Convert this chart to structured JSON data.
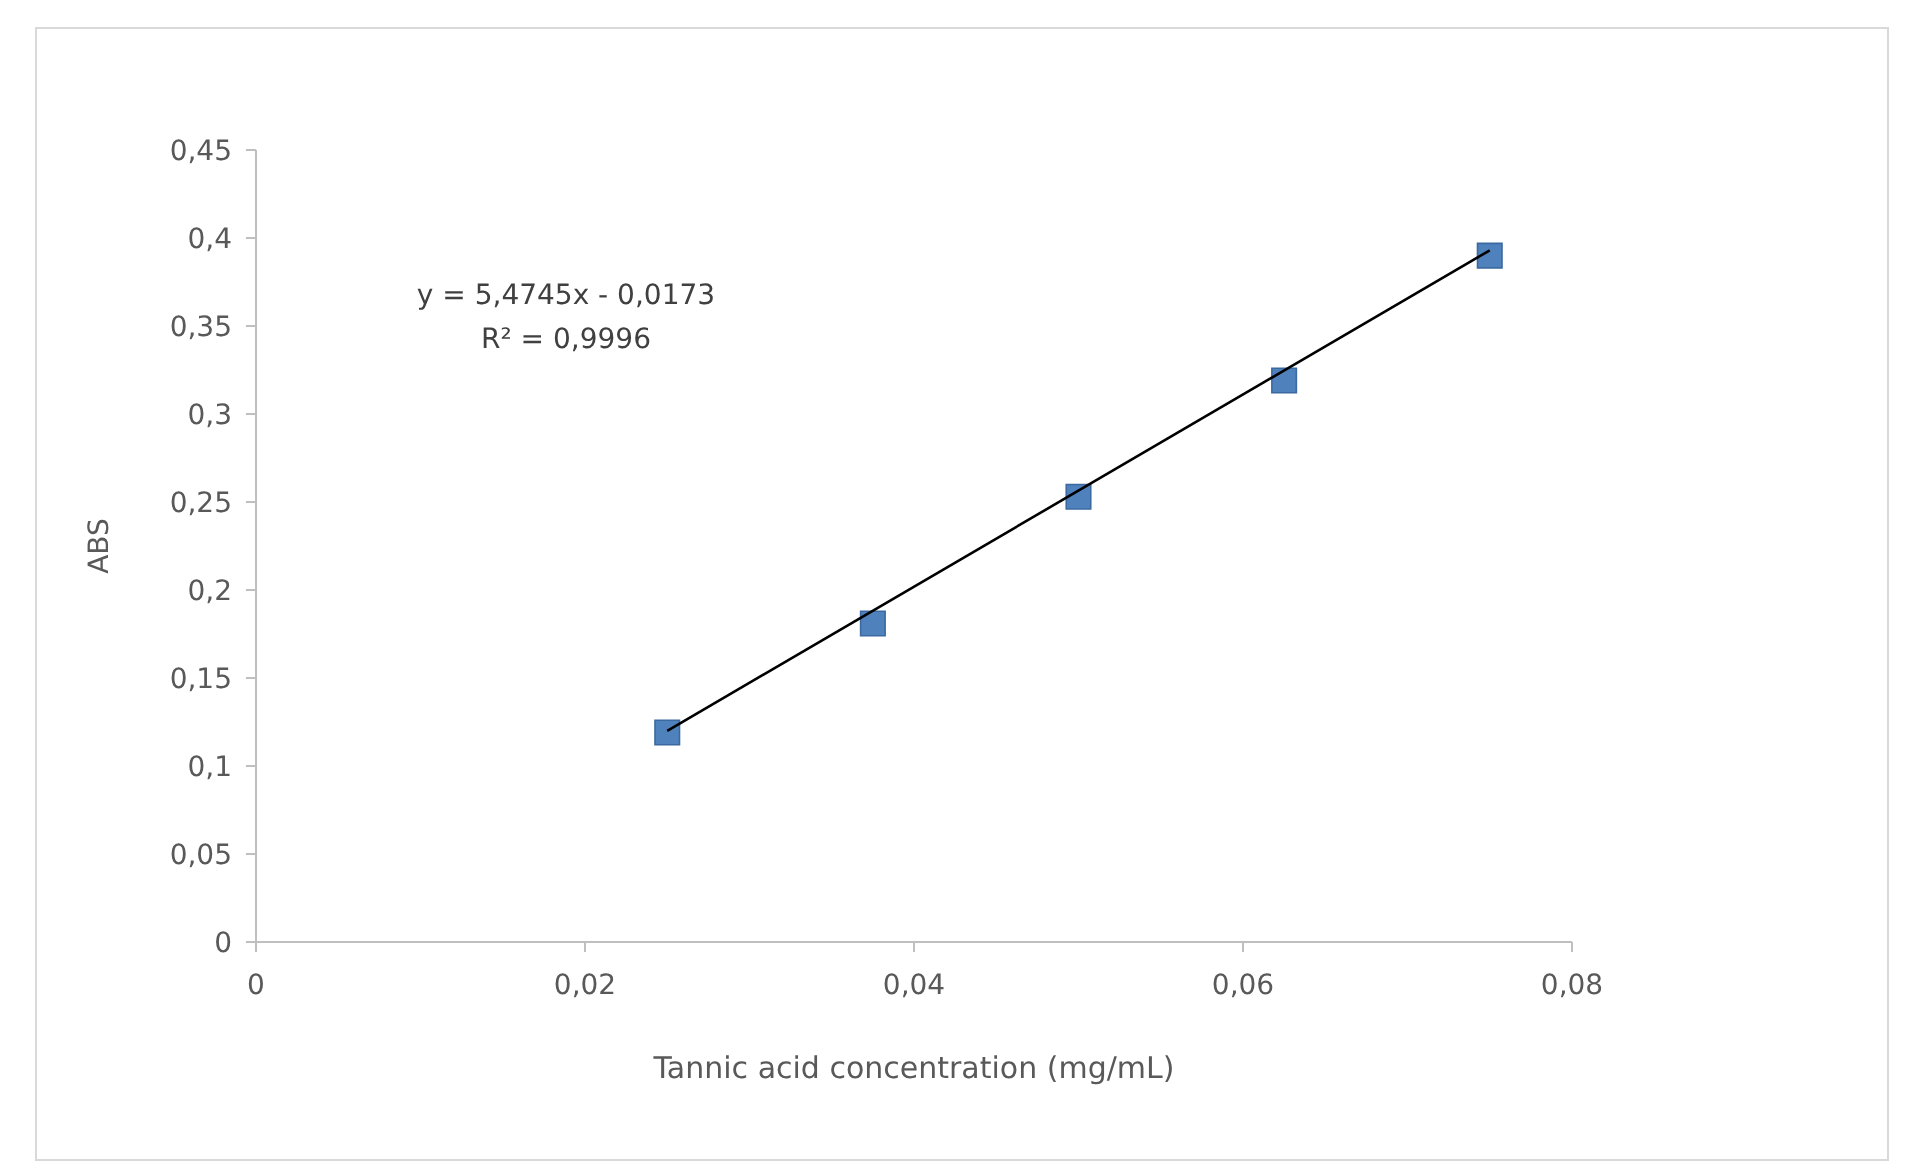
{
  "chart_data": {
    "type": "scatter",
    "xlabel": "Tannic acid concentration (mg/mL)",
    "ylabel": "ABS",
    "xlim": [
      0,
      0.08
    ],
    "ylim": [
      0,
      0.45
    ],
    "xticks": [
      0,
      {
        "value": 0.02,
        "label": "0,02"
      },
      {
        "value": 0.04,
        "label": "0,04"
      },
      {
        "value": 0.06,
        "label": "0,06"
      },
      {
        "value": 0.08,
        "label": "0,08"
      }
    ],
    "yticks": [
      0,
      {
        "value": 0.05,
        "label": "0,05"
      },
      {
        "value": 0.1,
        "label": "0,1"
      },
      {
        "value": 0.15,
        "label": "0,15"
      },
      {
        "value": 0.2,
        "label": "0,2"
      },
      {
        "value": 0.25,
        "label": "0,25"
      },
      {
        "value": 0.3,
        "label": "0,3"
      },
      {
        "value": 0.35,
        "label": "0,35"
      },
      {
        "value": 0.4,
        "label": "0,4"
      },
      {
        "value": 0.45,
        "label": "0,45"
      }
    ],
    "grid": false,
    "series": [
      {
        "color": "#4f81bd",
        "marker": "square",
        "x": [
          0.025,
          0.0375,
          0.05,
          0.0625,
          0.075
        ],
        "values": [
          0.119,
          0.181,
          0.253,
          0.319,
          0.39
        ]
      },
      {
        "type": "line",
        "color": "#000000",
        "marker": "none",
        "line_style": "solid",
        "x": [
          0.025,
          0.075
        ],
        "values": [
          0.12,
          0.393
        ]
      }
    ],
    "annotations": [
      "y = 5,4745x - 0,0173",
      "R² = 0,9996"
    ]
  }
}
